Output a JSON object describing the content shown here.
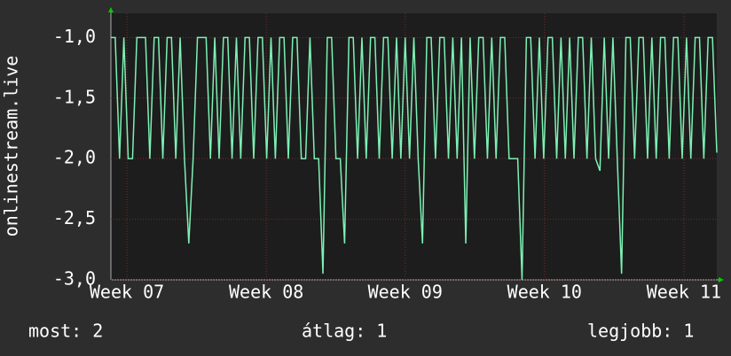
{
  "chart_data": {
    "type": "line",
    "y_label": "onlinestream.live",
    "color": "#7df0b4",
    "grid": true,
    "ylim": [
      -3.0,
      -0.8
    ],
    "yticks": [
      {
        "value": -3.0,
        "label": "-3,0"
      },
      {
        "value": -2.5,
        "label": "-2,5"
      },
      {
        "value": -2.0,
        "label": "-2,0"
      },
      {
        "value": -1.5,
        "label": "-1,5"
      },
      {
        "value": -1.0,
        "label": "-1,0"
      }
    ],
    "xlim": [
      0,
      140
    ],
    "xticks": [
      {
        "value": 3.7,
        "label": "Week 07"
      },
      {
        "value": 35.9,
        "label": "Week 08"
      },
      {
        "value": 68.0,
        "label": "Week 09"
      },
      {
        "value": 100.2,
        "label": "Week 10"
      },
      {
        "value": 132.4,
        "label": "Week 11"
      }
    ],
    "values": [
      -1,
      -1,
      -2,
      -1,
      -2,
      -2,
      -1,
      -1,
      -1,
      -2,
      -1,
      -1,
      -2,
      -1,
      -1,
      -2,
      -1,
      -2,
      -2.7,
      -2,
      -1,
      -1,
      -1,
      -2,
      -1,
      -2,
      -1,
      -1,
      -2,
      -1,
      -2,
      -1,
      -1,
      -2,
      -1,
      -1,
      -2,
      -1,
      -2,
      -1,
      -1,
      -2,
      -1,
      -1,
      -2,
      -2,
      -1,
      -2,
      -2,
      -2.95,
      -1,
      -1,
      -2,
      -2,
      -2.7,
      -1,
      -1,
      -2,
      -1,
      -2,
      -1,
      -1,
      -2,
      -1,
      -1,
      -2,
      -1,
      -2,
      -1,
      -2,
      -1,
      -2,
      -2.7,
      -1,
      -1,
      -2,
      -1,
      -1,
      -2,
      -1,
      -2,
      -1,
      -2.7,
      -1,
      -2,
      -1,
      -1,
      -2,
      -1,
      -2,
      -1,
      -1,
      -2,
      -2,
      -2,
      -3.0,
      -1,
      -1,
      -2,
      -1,
      -2,
      -1,
      -1,
      -2,
      -1,
      -2,
      -1,
      -2,
      -1,
      -1,
      -2,
      -1,
      -2,
      -2.1,
      -1,
      -2,
      -1,
      -2,
      -2.95,
      -1,
      -1,
      -2,
      -1,
      -1,
      -2,
      -1,
      -2,
      -1,
      -1,
      -2,
      -1,
      -1,
      -2,
      -1,
      -2,
      -1,
      -1,
      -2,
      -1,
      -1,
      -1.95
    ],
    "footer": {
      "current": "most: 2",
      "average": "átlag: 1",
      "best": "legjobb: 1"
    }
  }
}
